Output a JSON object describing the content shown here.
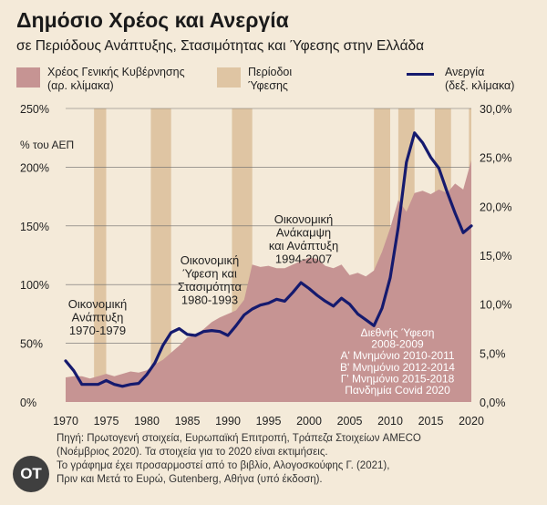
{
  "header": {
    "title": "Δημόσιο Χρέος και Ανεργία",
    "subtitle": "σε Περιόδους Ανάπτυξης, Στασιμότητας και Ύφεσης στην Ελλάδα"
  },
  "legend": {
    "debt_line1": "Χρέος Γενικής Κυβέρνησης",
    "debt_line2": "(αρ. κλίμακα)",
    "recession_line1": "Περίοδοι",
    "recession_line2": "Ύφεσης",
    "unemp_line1": "Ανεργία",
    "unemp_line2": "(δεξ. κλίμακα)"
  },
  "colors": {
    "background": "#f4ead9",
    "debt_area": "#c69493",
    "recession_band": "#dfc5a3",
    "unemployment_line": "#151a6e",
    "annotation_text": "#ffffff"
  },
  "chart_data": {
    "type": "area",
    "title": "Δημόσιο Χρέος και Ανεργία",
    "ylabel_left": "% του ΑΕΠ",
    "left_axis": {
      "range": [
        0,
        250
      ],
      "ticks": [
        0,
        50,
        100,
        150,
        200,
        250
      ],
      "tick_labels": [
        "0%",
        "50%",
        "100%",
        "150%",
        "200%",
        "250%"
      ]
    },
    "right_axis": {
      "range": [
        0,
        30
      ],
      "ticks": [
        0,
        5,
        10,
        15,
        20,
        25,
        30
      ],
      "tick_labels": [
        "0,0%",
        "5,0%",
        "10,0%",
        "15,0%",
        "20,0%",
        "25,0%",
        "30,0%"
      ]
    },
    "x_axis": {
      "range": [
        1970,
        2020
      ],
      "ticks": [
        1970,
        1975,
        1980,
        1985,
        1990,
        1995,
        2000,
        2005,
        2010,
        2015,
        2020
      ],
      "tick_labels": [
        "1970",
        "1975",
        "1980",
        "1985",
        "1990",
        "1995",
        "2000",
        "2005",
        "2010",
        "2015",
        "2020"
      ]
    },
    "grid": true,
    "recession_periods": [
      [
        1973.5,
        1975
      ],
      [
        1980.5,
        1983
      ],
      [
        1990.5,
        1993
      ],
      [
        2008,
        2010
      ],
      [
        2011,
        2013
      ],
      [
        2015.5,
        2017.5
      ],
      [
        2019.7,
        2020
      ]
    ],
    "series": [
      {
        "name": "Χρέος Γενικής Κυβέρνησης",
        "axis": "left",
        "type": "area",
        "x": [
          1970,
          1971,
          1972,
          1973,
          1974,
          1975,
          1976,
          1977,
          1978,
          1979,
          1980,
          1981,
          1982,
          1983,
          1984,
          1985,
          1986,
          1987,
          1988,
          1989,
          1990,
          1991,
          1992,
          1993,
          1994,
          1995,
          1996,
          1997,
          1998,
          1999,
          2000,
          2001,
          2002,
          2003,
          2004,
          2005,
          2006,
          2007,
          2008,
          2009,
          2010,
          2011,
          2012,
          2013,
          2014,
          2015,
          2016,
          2017,
          2018,
          2019,
          2020
        ],
        "values": [
          21,
          22,
          22,
          20,
          22,
          24,
          22,
          24,
          26,
          25,
          27,
          32,
          36,
          42,
          48,
          55,
          57,
          62,
          68,
          72,
          75,
          78,
          87,
          117,
          115,
          116,
          114,
          114,
          117,
          120,
          123,
          122,
          116,
          114,
          117,
          108,
          110,
          107,
          112,
          128,
          148,
          172,
          162,
          178,
          180,
          177,
          181,
          178,
          186,
          181,
          206
        ]
      },
      {
        "name": "Ανεργία",
        "axis": "right",
        "type": "line",
        "x": [
          1970,
          1971,
          1972,
          1973,
          1974,
          1975,
          1976,
          1977,
          1978,
          1979,
          1980,
          1981,
          1982,
          1983,
          1984,
          1985,
          1986,
          1987,
          1988,
          1989,
          1990,
          1991,
          1992,
          1993,
          1994,
          1995,
          1996,
          1997,
          1998,
          1999,
          2000,
          2001,
          2002,
          2003,
          2004,
          2005,
          2006,
          2007,
          2008,
          2009,
          2010,
          2011,
          2012,
          2013,
          2014,
          2015,
          2016,
          2017,
          2018,
          2019,
          2020
        ],
        "values": [
          4.2,
          3.2,
          1.8,
          1.8,
          1.8,
          2.2,
          1.8,
          1.6,
          1.8,
          1.9,
          2.8,
          4.0,
          5.8,
          7.1,
          7.5,
          6.9,
          6.8,
          7.2,
          7.3,
          7.2,
          6.8,
          7.8,
          8.9,
          9.5,
          9.9,
          10.1,
          10.5,
          10.3,
          11.2,
          12.2,
          11.6,
          10.9,
          10.3,
          9.8,
          10.6,
          10.0,
          9.0,
          8.4,
          7.8,
          9.6,
          12.7,
          17.9,
          24.5,
          27.5,
          26.5,
          25.0,
          23.9,
          21.5,
          19.3,
          17.3,
          18.0
        ]
      }
    ],
    "annotations": [
      {
        "id": "a1",
        "lines": [
          "Οικονομική",
          "Ανάπτυξη",
          "1970-1979"
        ]
      },
      {
        "id": "a2",
        "lines": [
          "Οικονομική",
          "Ύφεση και",
          "Στασιμότητα",
          "1980-1993"
        ]
      },
      {
        "id": "a3",
        "lines": [
          "Οικονομική",
          "Ανάκαμψη",
          "και Ανάπτυξη",
          "1994-2007"
        ]
      },
      {
        "id": "a4",
        "lines": [
          "Διεθνής Ύφεση",
          "2008-2009",
          "Α' Μνημόνιο 2010-2011",
          "Β' Μνημόνιο 2012-2014",
          "Γ' Μνημόνιο 2015-2018",
          "Πανδημία Covid 2020"
        ]
      }
    ]
  },
  "footer": {
    "line1": "Πηγή: Πρωτογενή στοιχεία, Ευρωπαϊκή Επιτροπή, Τράπεζα Στοιχείων AMECO",
    "line2": "(Νοέμβριος 2020). Τα στοιχεία για το 2020 είναι εκτιμήσεις.",
    "line3": "Το γράφημα έχει προσαρμοστεί από το βιβλίο, Αλογοσκούφης Γ. (2021),",
    "line4": "Πριν και Μετά το Ευρώ, Gutenberg, Αθήνα (υπό έκδοση)."
  },
  "logo": {
    "text": "OT"
  }
}
